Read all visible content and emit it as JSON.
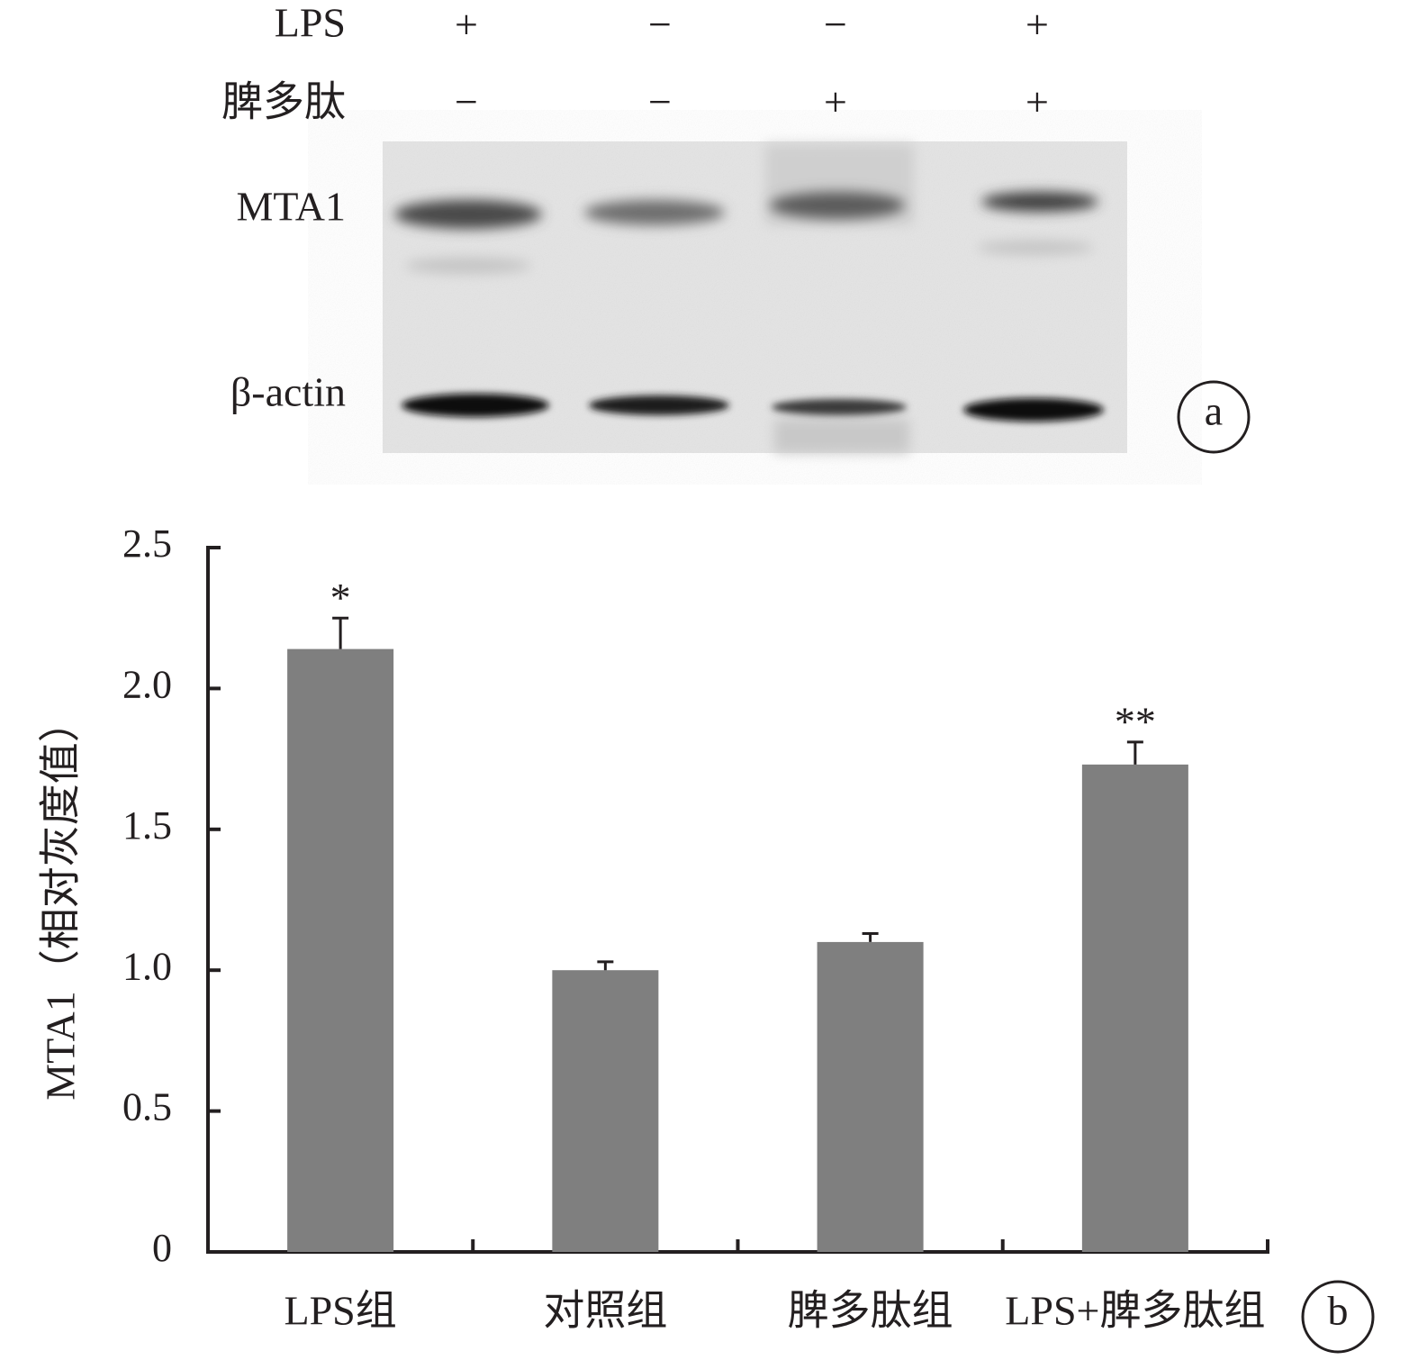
{
  "blot": {
    "rows": [
      {
        "label": "LPS",
        "signs": [
          "+",
          "−",
          "−",
          "+"
        ]
      },
      {
        "label": "脾多肽",
        "signs": [
          "−",
          "−",
          "+",
          "+"
        ]
      }
    ],
    "bands": [
      "MTA1",
      "β-actin"
    ],
    "panel": "a"
  },
  "chart_data": {
    "type": "bar",
    "ylabel": "MTA1（相对灰度值）",
    "categories": [
      "LPS组",
      "对照组",
      "脾多肽组",
      "LPS+脾多肽组"
    ],
    "values": [
      2.14,
      1.0,
      1.1,
      1.73
    ],
    "errors": [
      0.11,
      0.03,
      0.03,
      0.08
    ],
    "annotations": [
      "*",
      null,
      null,
      "**"
    ],
    "color": "#7f7f7f",
    "ylim": [
      0,
      2.5
    ],
    "yticks": [
      0,
      0.5,
      {
        "value": 1,
        "label": "1.0"
      },
      1.5,
      {
        "value": 2,
        "label": "2.0"
      },
      2.5
    ],
    "panel": "b"
  }
}
